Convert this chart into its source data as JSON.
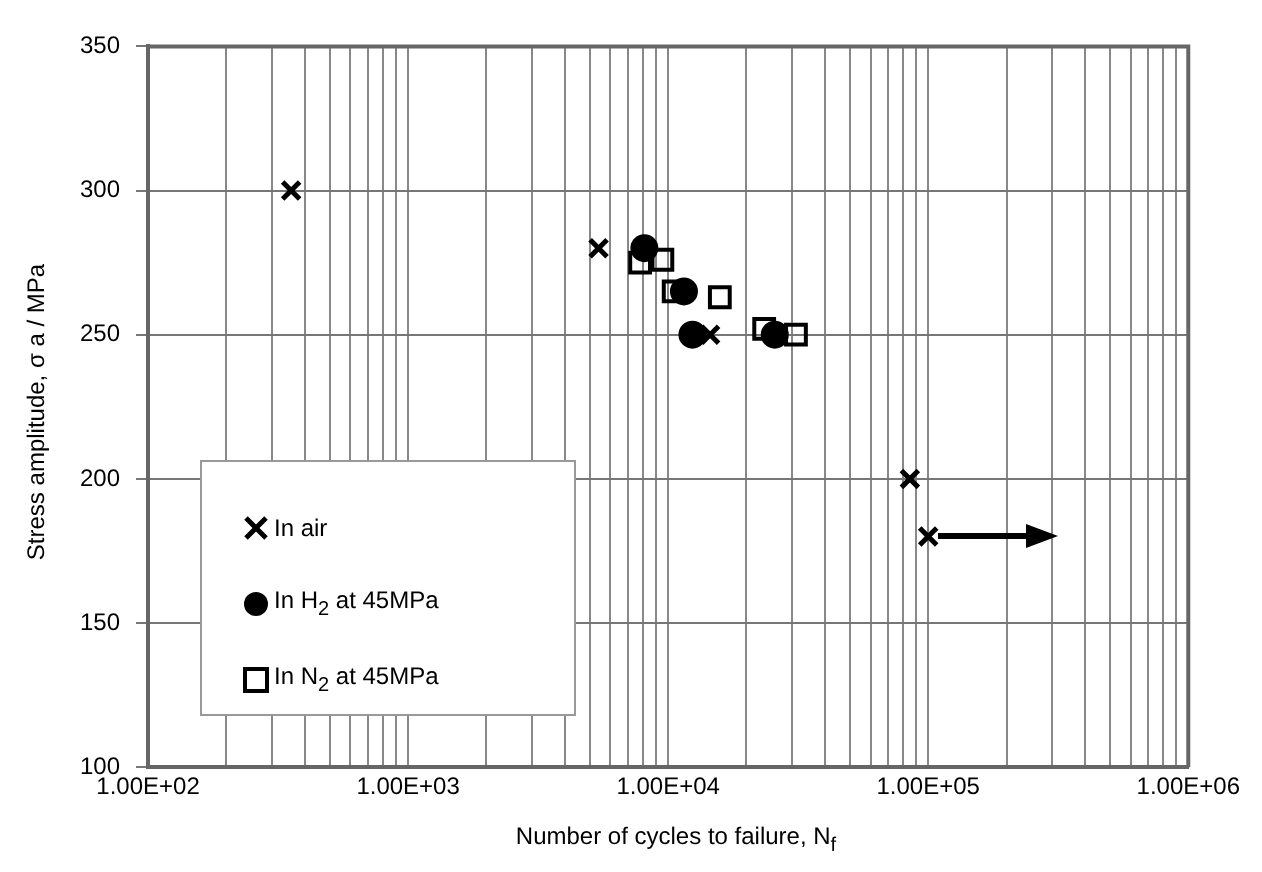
{
  "chart_data": {
    "type": "scatter",
    "xlabel": "Number of cycles to failure, N$_{f}$",
    "ylabel": "Stress amplitude, σ a / MPa",
    "log": "x",
    "grid": true,
    "legend": "bottom left",
    "xlim": [
      100,
      1000000
    ],
    "ylim": [
      100,
      350
    ],
    "xticks": [
      {
        "value": 100,
        "label": "1.00E+02"
      },
      {
        "value": 200,
        "label": null
      },
      {
        "value": 300,
        "label": null
      },
      {
        "value": 400,
        "label": null
      },
      {
        "value": 500,
        "label": null
      },
      {
        "value": 600,
        "label": null
      },
      {
        "value": 700,
        "label": null
      },
      {
        "value": 800,
        "label": null
      },
      {
        "value": 900,
        "label": null
      },
      {
        "value": 1000,
        "label": "1.00E+03"
      },
      {
        "value": 2000,
        "label": null
      },
      {
        "value": 3000,
        "label": null
      },
      {
        "value": 4000,
        "label": null
      },
      {
        "value": 5000,
        "label": null
      },
      {
        "value": 6000,
        "label": null
      },
      {
        "value": 7000,
        "label": null
      },
      {
        "value": 8000,
        "label": null
      },
      {
        "value": 9000,
        "label": null
      },
      {
        "value": 10000,
        "label": "1.00E+04"
      },
      {
        "value": 20000,
        "label": null
      },
      {
        "value": 30000,
        "label": null
      },
      {
        "value": 40000,
        "label": null
      },
      {
        "value": 50000,
        "label": null
      },
      {
        "value": 60000,
        "label": null
      },
      {
        "value": 70000,
        "label": null
      },
      {
        "value": 80000,
        "label": null
      },
      {
        "value": 90000,
        "label": null
      },
      {
        "value": 100000,
        "label": "1.00E+05"
      },
      {
        "value": 200000,
        "label": null
      },
      {
        "value": 300000,
        "label": null
      },
      {
        "value": 400000,
        "label": null
      },
      {
        "value": 500000,
        "label": null
      },
      {
        "value": 600000,
        "label": null
      },
      {
        "value": 700000,
        "label": null
      },
      {
        "value": 800000,
        "label": null
      },
      {
        "value": 900000,
        "label": null
      },
      {
        "value": 1000000,
        "label": "1.00E+06"
      }
    ],
    "yticks": [
      100,
      150,
      200,
      250,
      300,
      350
    ],
    "series": [
      {
        "name": "In air",
        "color": "#000000",
        "marker": "cross",
        "x": [
          355,
          5400,
          14500,
          85000,
          100000
        ],
        "values": [
          300,
          280,
          250,
          200,
          180
        ]
      },
      {
        "name": "In H$_{2}$ at 45MPa",
        "color": "#000000",
        "marker": "circle",
        "x": [
          8100,
          11500,
          12400,
          25700
        ],
        "values": [
          280,
          265,
          250,
          250
        ]
      },
      {
        "name": "In N$_{2}$ at 45MPa",
        "color": "#000000",
        "marker": "square",
        "x": [
          7800,
          9500,
          10500,
          15800,
          23400,
          31000
        ],
        "values": [
          275,
          276,
          265,
          263,
          252,
          250
        ]
      }
    ]
  }
}
